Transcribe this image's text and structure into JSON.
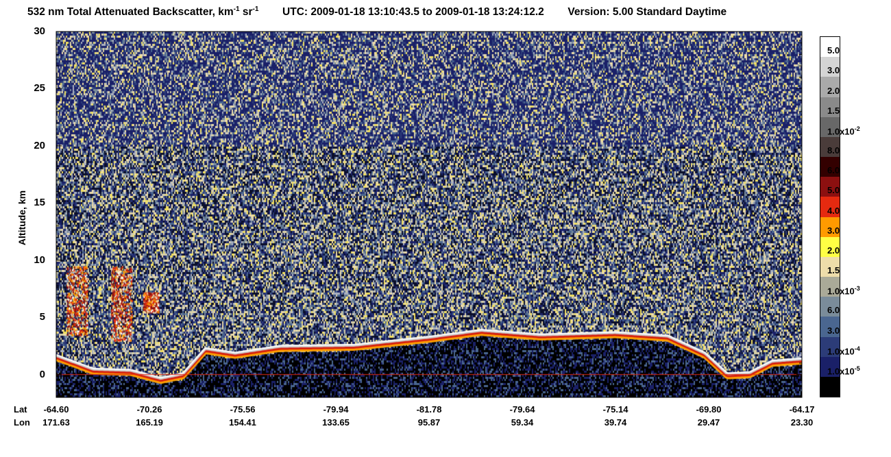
{
  "title": {
    "prefix": "532 nm Total Attenuated Backscatter, km",
    "exp1": "-1",
    "sr": " sr",
    "exp2": "-1",
    "utc": "UTC:  2009-01-18 13:10:43.5  to  2009-01-18 13:24:12.2",
    "version": "Version: 5.00  Standard  Daytime"
  },
  "chart_data": {
    "type": "heatmap",
    "ylabel": "Altitude, km",
    "yticks": [
      "30",
      "25",
      "20",
      "15",
      "10",
      "5",
      "0"
    ],
    "ylim": [
      -2,
      30
    ],
    "x_header_lat": "Lat",
    "x_header_lon": "Lon",
    "lat_ticks": [
      "-64.60",
      "-70.26",
      "-75.56",
      "-79.94",
      "-81.78",
      "-79.64",
      "-75.14",
      "-69.80",
      "-64.17"
    ],
    "lon_ticks": [
      "171.63",
      "165.19",
      "154.41",
      "133.65",
      "95.87",
      "59.34",
      "39.74",
      "29.47",
      "23.30"
    ],
    "surface_altitude_km": [
      {
        "x": 0.0,
        "y": 1.6
      },
      {
        "x": 0.05,
        "y": 0.4
      },
      {
        "x": 0.1,
        "y": 0.3
      },
      {
        "x": 0.14,
        "y": -0.4
      },
      {
        "x": 0.17,
        "y": 0.0
      },
      {
        "x": 0.2,
        "y": 2.2
      },
      {
        "x": 0.24,
        "y": 1.8
      },
      {
        "x": 0.3,
        "y": 2.4
      },
      {
        "x": 0.4,
        "y": 2.5
      },
      {
        "x": 0.5,
        "y": 3.2
      },
      {
        "x": 0.57,
        "y": 3.8
      },
      {
        "x": 0.65,
        "y": 3.4
      },
      {
        "x": 0.75,
        "y": 3.6
      },
      {
        "x": 0.82,
        "y": 3.3
      },
      {
        "x": 0.87,
        "y": 1.8
      },
      {
        "x": 0.9,
        "y": 0.0
      },
      {
        "x": 0.93,
        "y": 0.1
      },
      {
        "x": 0.96,
        "y": 1.1
      },
      {
        "x": 1.0,
        "y": 1.3
      }
    ],
    "colorbar": {
      "labels": [
        {
          "text": "5.0"
        },
        {
          "text": "3.0"
        },
        {
          "text": "2.0"
        },
        {
          "text": "1.5"
        },
        {
          "text": "1.0x10",
          "exp": "-2"
        },
        {
          "text": "8.0"
        },
        {
          "text": "6.0"
        },
        {
          "text": "5.0"
        },
        {
          "text": "4.0"
        },
        {
          "text": "3.0"
        },
        {
          "text": "2.0"
        },
        {
          "text": "1.5"
        },
        {
          "text": "1.0x10",
          "exp": "-3"
        },
        {
          "text": "6.0"
        },
        {
          "text": "3.0"
        },
        {
          "text": "1.0x10",
          "exp": "-4"
        },
        {
          "text": "1.0x10",
          "exp": "-5"
        }
      ],
      "colors": [
        "#ffffff",
        "#d4d4d4",
        "#aaaaaa",
        "#8a8a8a",
        "#686868",
        "#4a3c3a",
        "#330000",
        "#8c1010",
        "#e52a10",
        "#ff9a00",
        "#ffff44",
        "#eeddaa",
        "#aaaa98",
        "#7a8c9a",
        "#4a6690",
        "#2c3c78",
        "#1a2068",
        "#000000"
      ]
    }
  }
}
